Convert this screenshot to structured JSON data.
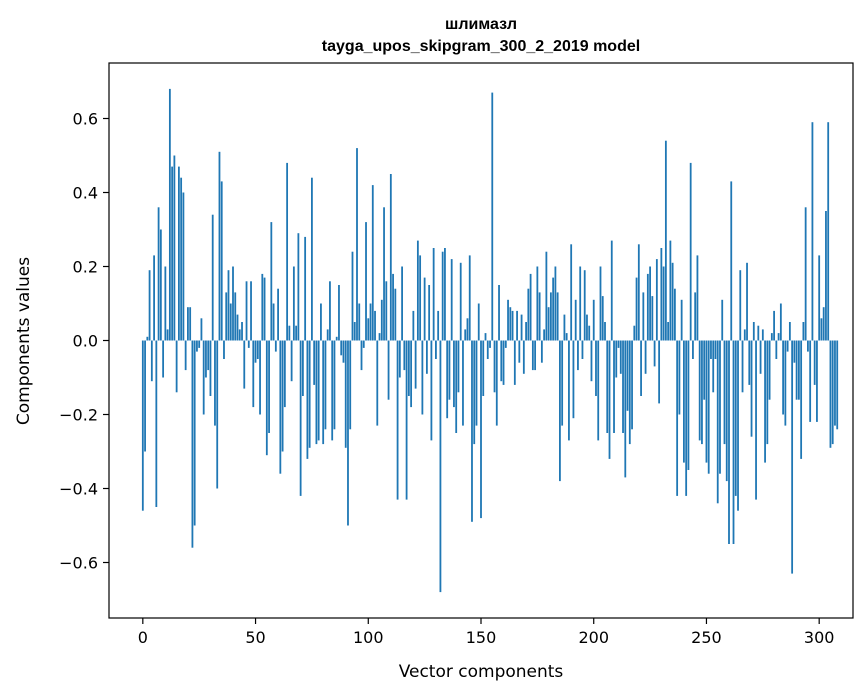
{
  "chart_data": {
    "type": "bar",
    "title_line1": "шлимазл",
    "title_line2": "tayga_upos_skipgram_300_2_2019 model",
    "xlabel": "Vector components",
    "ylabel": "Components values",
    "xlim": [
      -15,
      315
    ],
    "ylim": [
      -0.75,
      0.75
    ],
    "x_ticks": [
      0,
      50,
      100,
      150,
      200,
      250,
      300
    ],
    "x_tick_labels": [
      "0",
      "50",
      "100",
      "150",
      "200",
      "250",
      "300"
    ],
    "y_ticks": [
      -0.6,
      -0.4,
      -0.2,
      0.0,
      0.2,
      0.4,
      0.6
    ],
    "y_tick_labels": [
      "−0.6",
      "−0.4",
      "−0.2",
      "0.0",
      "0.2",
      "0.4",
      "0.6"
    ],
    "bar_color": "#1f77b4",
    "grid": false,
    "x_start": 0,
    "values": [
      -0.46,
      -0.3,
      0.01,
      0.19,
      -0.11,
      0.23,
      -0.45,
      0.36,
      0.3,
      -0.1,
      0.2,
      0.03,
      0.68,
      0.47,
      0.5,
      -0.14,
      0.47,
      0.44,
      0.4,
      -0.08,
      0.09,
      0.09,
      -0.56,
      -0.5,
      -0.03,
      -0.02,
      0.06,
      -0.2,
      -0.1,
      -0.08,
      -0.15,
      0.34,
      -0.23,
      -0.4,
      0.51,
      0.43,
      -0.05,
      0.13,
      0.19,
      0.1,
      0.2,
      0.13,
      0.07,
      0.03,
      0.05,
      -0.13,
      0.16,
      -0.02,
      0.16,
      -0.18,
      -0.06,
      -0.05,
      -0.2,
      0.18,
      0.17,
      -0.31,
      -0.25,
      0.32,
      0.1,
      -0.03,
      0.14,
      -0.36,
      -0.3,
      -0.18,
      0.48,
      0.04,
      -0.11,
      0.2,
      0.04,
      0.29,
      -0.42,
      -0.15,
      0.28,
      -0.32,
      -0.29,
      0.44,
      -0.12,
      -0.28,
      -0.27,
      0.1,
      -0.28,
      -0.24,
      0.03,
      0.16,
      -0.27,
      -0.24,
      0.01,
      0.15,
      -0.04,
      -0.06,
      -0.29,
      -0.5,
      -0.24,
      0.24,
      0.05,
      0.52,
      0.1,
      -0.08,
      -0.02,
      0.32,
      0.06,
      0.1,
      0.42,
      0.08,
      -0.23,
      0.02,
      0.11,
      0.36,
      0.16,
      -0.16,
      0.45,
      0.18,
      0.14,
      -0.43,
      -0.1,
      0.2,
      -0.08,
      -0.43,
      -0.15,
      -0.18,
      0.08,
      -0.13,
      0.27,
      0.23,
      -0.2,
      0.17,
      -0.09,
      0.15,
      -0.27,
      0.25,
      -0.05,
      0.08,
      -0.68,
      0.24,
      0.25,
      -0.21,
      -0.16,
      0.22,
      -0.18,
      -0.25,
      -0.14,
      0.21,
      -0.23,
      0.03,
      0.06,
      0.23,
      -0.49,
      -0.28,
      -0.23,
      0.1,
      -0.48,
      -0.15,
      0.02,
      -0.05,
      -0.02,
      0.67,
      -0.14,
      -0.23,
      0.15,
      -0.11,
      -0.12,
      -0.02,
      0.11,
      0.09,
      0.08,
      -0.12,
      0.08,
      -0.06,
      0.07,
      -0.09,
      0.05,
      0.14,
      0.18,
      -0.08,
      -0.08,
      0.2,
      0.13,
      -0.06,
      0.03,
      0.24,
      0.09,
      0.13,
      0.17,
      0.2,
      0.13,
      -0.38,
      -0.23,
      0.07,
      0.02,
      -0.27,
      0.26,
      -0.21,
      0.11,
      -0.08,
      0.2,
      -0.05,
      0.19,
      0.07,
      0.04,
      -0.11,
      0.11,
      -0.15,
      -0.27,
      0.2,
      0.12,
      0.05,
      -0.25,
      -0.32,
      0.27,
      -0.25,
      -0.1,
      -0.02,
      -0.09,
      -0.25,
      -0.37,
      -0.19,
      -0.28,
      -0.24,
      0.04,
      0.17,
      0.26,
      -0.15,
      0.13,
      -0.09,
      0.18,
      0.2,
      0.12,
      -0.07,
      0.22,
      -0.17,
      0.25,
      0.2,
      0.54,
      0.05,
      0.27,
      0.21,
      0.14,
      -0.42,
      -0.2,
      0.11,
      -0.33,
      -0.42,
      -0.35,
      0.48,
      -0.05,
      0.13,
      0.23,
      -0.27,
      -0.28,
      -0.16,
      -0.33,
      -0.36,
      -0.05,
      -0.14,
      -0.05,
      -0.44,
      -0.36,
      0.11,
      -0.28,
      -0.38,
      -0.55,
      0.43,
      -0.55,
      -0.42,
      -0.46,
      0.19,
      -0.14,
      0.03,
      0.21,
      -0.12,
      -0.26,
      0.05,
      -0.43,
      0.04,
      -0.09,
      0.03,
      -0.33,
      -0.28,
      -0.16,
      0.02,
      0.08,
      -0.05,
      0.02,
      0.1,
      -0.2,
      -0.23,
      -0.03,
      0.05,
      -0.63,
      -0.06,
      -0.16,
      -0.16,
      -0.32,
      0.05,
      0.36,
      -0.03,
      -0.22,
      0.59,
      -0.12,
      -0.22,
      0.23,
      0.06,
      0.09,
      0.35,
      0.59,
      -0.29,
      -0.28,
      -0.23,
      -0.24
    ]
  }
}
